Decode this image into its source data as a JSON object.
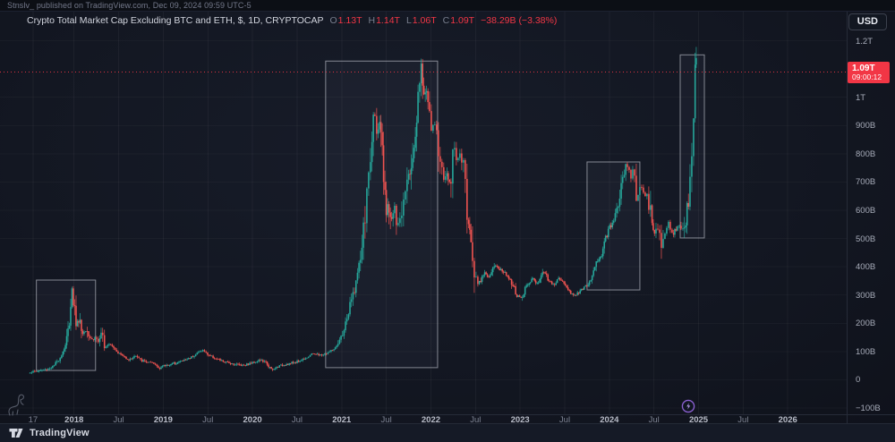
{
  "header": {
    "attribution": "Stnslv_ published on TradingView.com, Dec 09, 2024 09:59 UTC-5"
  },
  "toolbar": {
    "currency_label": "USD"
  },
  "legend": {
    "title": "Crypto Total Market Cap Excluding BTC and ETH, $, 1D, CRYPTOCAP",
    "ohlc": [
      {
        "key": "O",
        "value": "1.13T"
      },
      {
        "key": "H",
        "value": "1.14T"
      },
      {
        "key": "L",
        "value": "1.06T"
      },
      {
        "key": "C",
        "value": "1.09T"
      }
    ],
    "change": "−38.29B (−3.38%)"
  },
  "price_label": {
    "value": "1.09T",
    "countdown": "09:00:12"
  },
  "footer": {
    "brand": "TradingView"
  },
  "colors": {
    "up_candle": "#26a69a",
    "down_candle": "#ef5350",
    "price_line": "#f23645",
    "box_stroke": "rgba(223,226,235,0.55)",
    "box_fill": "rgba(140,152,175,0.055)",
    "grid": "rgba(255,255,255,0.045)",
    "event_purple": "#9c6ade"
  },
  "chart_data": {
    "type": "candlestick",
    "title": "Crypto Total Market Cap Excluding BTC and ETH",
    "symbol": "CRYPTOCAP",
    "interval": "1D",
    "unit": "USD billions",
    "x_axis": {
      "min": 2017.17,
      "max": 2026.66,
      "ticks": [
        {
          "label": "17",
          "t": 2017.54,
          "minor": true
        },
        {
          "label": "2018",
          "t": 2018.0,
          "minor": false
        },
        {
          "label": "Jul",
          "t": 2018.5,
          "minor": true
        },
        {
          "label": "2019",
          "t": 2019.0,
          "minor": false
        },
        {
          "label": "Jul",
          "t": 2019.5,
          "minor": true
        },
        {
          "label": "2020",
          "t": 2020.0,
          "minor": false
        },
        {
          "label": "Jul",
          "t": 2020.5,
          "minor": true
        },
        {
          "label": "2021",
          "t": 2021.0,
          "minor": false
        },
        {
          "label": "Jul",
          "t": 2021.5,
          "minor": true
        },
        {
          "label": "2022",
          "t": 2022.0,
          "minor": false
        },
        {
          "label": "Jul",
          "t": 2022.5,
          "minor": true
        },
        {
          "label": "2023",
          "t": 2023.0,
          "minor": false
        },
        {
          "label": "Jul",
          "t": 2023.5,
          "minor": true
        },
        {
          "label": "2024",
          "t": 2024.0,
          "minor": false
        },
        {
          "label": "Jul",
          "t": 2024.5,
          "minor": true
        },
        {
          "label": "2025",
          "t": 2025.0,
          "minor": false
        },
        {
          "label": "Jul",
          "t": 2025.5,
          "minor": true
        },
        {
          "label": "2026",
          "t": 2026.0,
          "minor": false
        }
      ]
    },
    "y_axis": {
      "min": -122,
      "max": 1303,
      "ticks": [
        {
          "label": "1.2T",
          "v": 1200
        },
        {
          "label": "1T",
          "v": 1000
        },
        {
          "label": "900B",
          "v": 900
        },
        {
          "label": "800B",
          "v": 800
        },
        {
          "label": "700B",
          "v": 700
        },
        {
          "label": "600B",
          "v": 600
        },
        {
          "label": "500B",
          "v": 500
        },
        {
          "label": "400B",
          "v": 400
        },
        {
          "label": "300B",
          "v": 300
        },
        {
          "label": "200B",
          "v": 200
        },
        {
          "label": "100B",
          "v": 100
        },
        {
          "label": "0",
          "v": 0
        },
        {
          "label": "−100B",
          "v": -100
        }
      ]
    },
    "price_line": {
      "value": 1090
    },
    "keyframes": [
      [
        2017.498,
        27
      ],
      [
        2017.568,
        30
      ],
      [
        2017.649,
        34
      ],
      [
        2017.719,
        40
      ],
      [
        2017.769,
        48
      ],
      [
        2017.819,
        68
      ],
      [
        2017.869,
        95
      ],
      [
        2017.91,
        130
      ],
      [
        2017.94,
        185
      ],
      [
        2017.97,
        330
      ],
      [
        2018.0,
        265
      ],
      [
        2018.03,
        190
      ],
      [
        2018.06,
        225
      ],
      [
        2018.09,
        160
      ],
      [
        2018.12,
        178
      ],
      [
        2018.141,
        196
      ],
      [
        2018.171,
        152
      ],
      [
        2018.211,
        140
      ],
      [
        2018.241,
        152
      ],
      [
        2018.281,
        128
      ],
      [
        2018.311,
        162
      ],
      [
        2018.351,
        118
      ],
      [
        2018.402,
        132
      ],
      [
        2018.452,
        112
      ],
      [
        2018.502,
        94
      ],
      [
        2018.562,
        82
      ],
      [
        2018.622,
        70
      ],
      [
        2018.683,
        86
      ],
      [
        2018.753,
        68
      ],
      [
        2018.833,
        62
      ],
      [
        2018.903,
        55
      ],
      [
        2018.953,
        42
      ],
      [
        2019.014,
        50
      ],
      [
        2019.094,
        56
      ],
      [
        2019.184,
        64
      ],
      [
        2019.275,
        74
      ],
      [
        2019.355,
        88
      ],
      [
        2019.435,
        106
      ],
      [
        2019.506,
        88
      ],
      [
        2019.596,
        74
      ],
      [
        2019.696,
        62
      ],
      [
        2019.797,
        56
      ],
      [
        2019.897,
        52
      ],
      [
        2019.977,
        58
      ],
      [
        2020.078,
        70
      ],
      [
        2020.158,
        60
      ],
      [
        2020.218,
        32
      ],
      [
        2020.278,
        46
      ],
      [
        2020.359,
        54
      ],
      [
        2020.449,
        60
      ],
      [
        2020.539,
        68
      ],
      [
        2020.62,
        82
      ],
      [
        2020.69,
        94
      ],
      [
        2020.75,
        86
      ],
      [
        2020.82,
        92
      ],
      [
        2020.89,
        104
      ],
      [
        2020.951,
        118
      ],
      [
        2021.001,
        155
      ],
      [
        2021.051,
        205
      ],
      [
        2021.101,
        270
      ],
      [
        2021.152,
        335
      ],
      [
        2021.202,
        410
      ],
      [
        2021.252,
        545
      ],
      [
        2021.292,
        690
      ],
      [
        2021.332,
        810
      ],
      [
        2021.362,
        940
      ],
      [
        2021.382,
        955
      ],
      [
        2021.402,
        860
      ],
      [
        2021.432,
        905
      ],
      [
        2021.462,
        750
      ],
      [
        2021.492,
        585
      ],
      [
        2021.523,
        645
      ],
      [
        2021.553,
        555
      ],
      [
        2021.583,
        605
      ],
      [
        2021.623,
        535
      ],
      [
        2021.663,
        575
      ],
      [
        2021.703,
        675
      ],
      [
        2021.743,
        755
      ],
      [
        2021.773,
        715
      ],
      [
        2021.803,
        815
      ],
      [
        2021.833,
        895
      ],
      [
        2021.863,
        1045
      ],
      [
        2021.884,
        1120
      ],
      [
        2021.914,
        995
      ],
      [
        2021.944,
        1055
      ],
      [
        2021.974,
        945
      ],
      [
        2022.014,
        875
      ],
      [
        2022.054,
        915
      ],
      [
        2022.094,
        795
      ],
      [
        2022.134,
        700
      ],
      [
        2022.174,
        738
      ],
      [
        2022.215,
        680
      ],
      [
        2022.255,
        845
      ],
      [
        2022.295,
        780
      ],
      [
        2022.335,
        798
      ],
      [
        2022.375,
        735
      ],
      [
        2022.415,
        558
      ],
      [
        2022.456,
        478
      ],
      [
        2022.496,
        375
      ],
      [
        2022.536,
        338
      ],
      [
        2022.596,
        385
      ],
      [
        2022.656,
        355
      ],
      [
        2022.717,
        408
      ],
      [
        2022.777,
        390
      ],
      [
        2022.837,
        375
      ],
      [
        2022.897,
        355
      ],
      [
        2022.957,
        298
      ],
      [
        2023.018,
        288
      ],
      [
        2023.078,
        338
      ],
      [
        2023.138,
        358
      ],
      [
        2023.198,
        338
      ],
      [
        2023.259,
        390
      ],
      [
        2023.319,
        352
      ],
      [
        2023.379,
        338
      ],
      [
        2023.439,
        358
      ],
      [
        2023.499,
        342
      ],
      [
        2023.56,
        308
      ],
      [
        2023.62,
        298
      ],
      [
        2023.68,
        318
      ],
      [
        2023.74,
        330
      ],
      [
        2023.8,
        358
      ],
      [
        2023.861,
        418
      ],
      [
        2023.921,
        448
      ],
      [
        2023.981,
        528
      ],
      [
        2024.041,
        558
      ],
      [
        2024.091,
        608
      ],
      [
        2024.141,
        698
      ],
      [
        2024.192,
        758
      ],
      [
        2024.232,
        718
      ],
      [
        2024.272,
        738
      ],
      [
        2024.312,
        648
      ],
      [
        2024.352,
        678
      ],
      [
        2024.392,
        638
      ],
      [
        2024.432,
        658
      ],
      [
        2024.472,
        558
      ],
      [
        2024.513,
        518
      ],
      [
        2024.553,
        558
      ],
      [
        2024.593,
        478
      ],
      [
        2024.633,
        538
      ],
      [
        2024.673,
        558
      ],
      [
        2024.713,
        518
      ],
      [
        2024.754,
        538
      ],
      [
        2024.794,
        555
      ],
      [
        2024.834,
        515
      ],
      [
        2024.864,
        585
      ],
      [
        2024.894,
        660
      ],
      [
        2024.914,
        745
      ],
      [
        2024.934,
        860
      ],
      [
        2024.954,
        1010
      ],
      [
        2024.969,
        1130
      ],
      [
        2024.979,
        1090
      ]
    ],
    "boxes": [
      {
        "t1": 2017.578,
        "v1": 353,
        "t2": 2018.241,
        "v2": 33
      },
      {
        "t1": 2020.82,
        "v1": 1128,
        "t2": 2022.075,
        "v2": 43
      },
      {
        "t1": 2023.75,
        "v1": 771,
        "t2": 2024.342,
        "v2": 318
      },
      {
        "t1": 2024.794,
        "v1": 1150,
        "t2": 2025.065,
        "v2": 502
      }
    ],
    "event_marker": {
      "t": 2024.884
    }
  }
}
